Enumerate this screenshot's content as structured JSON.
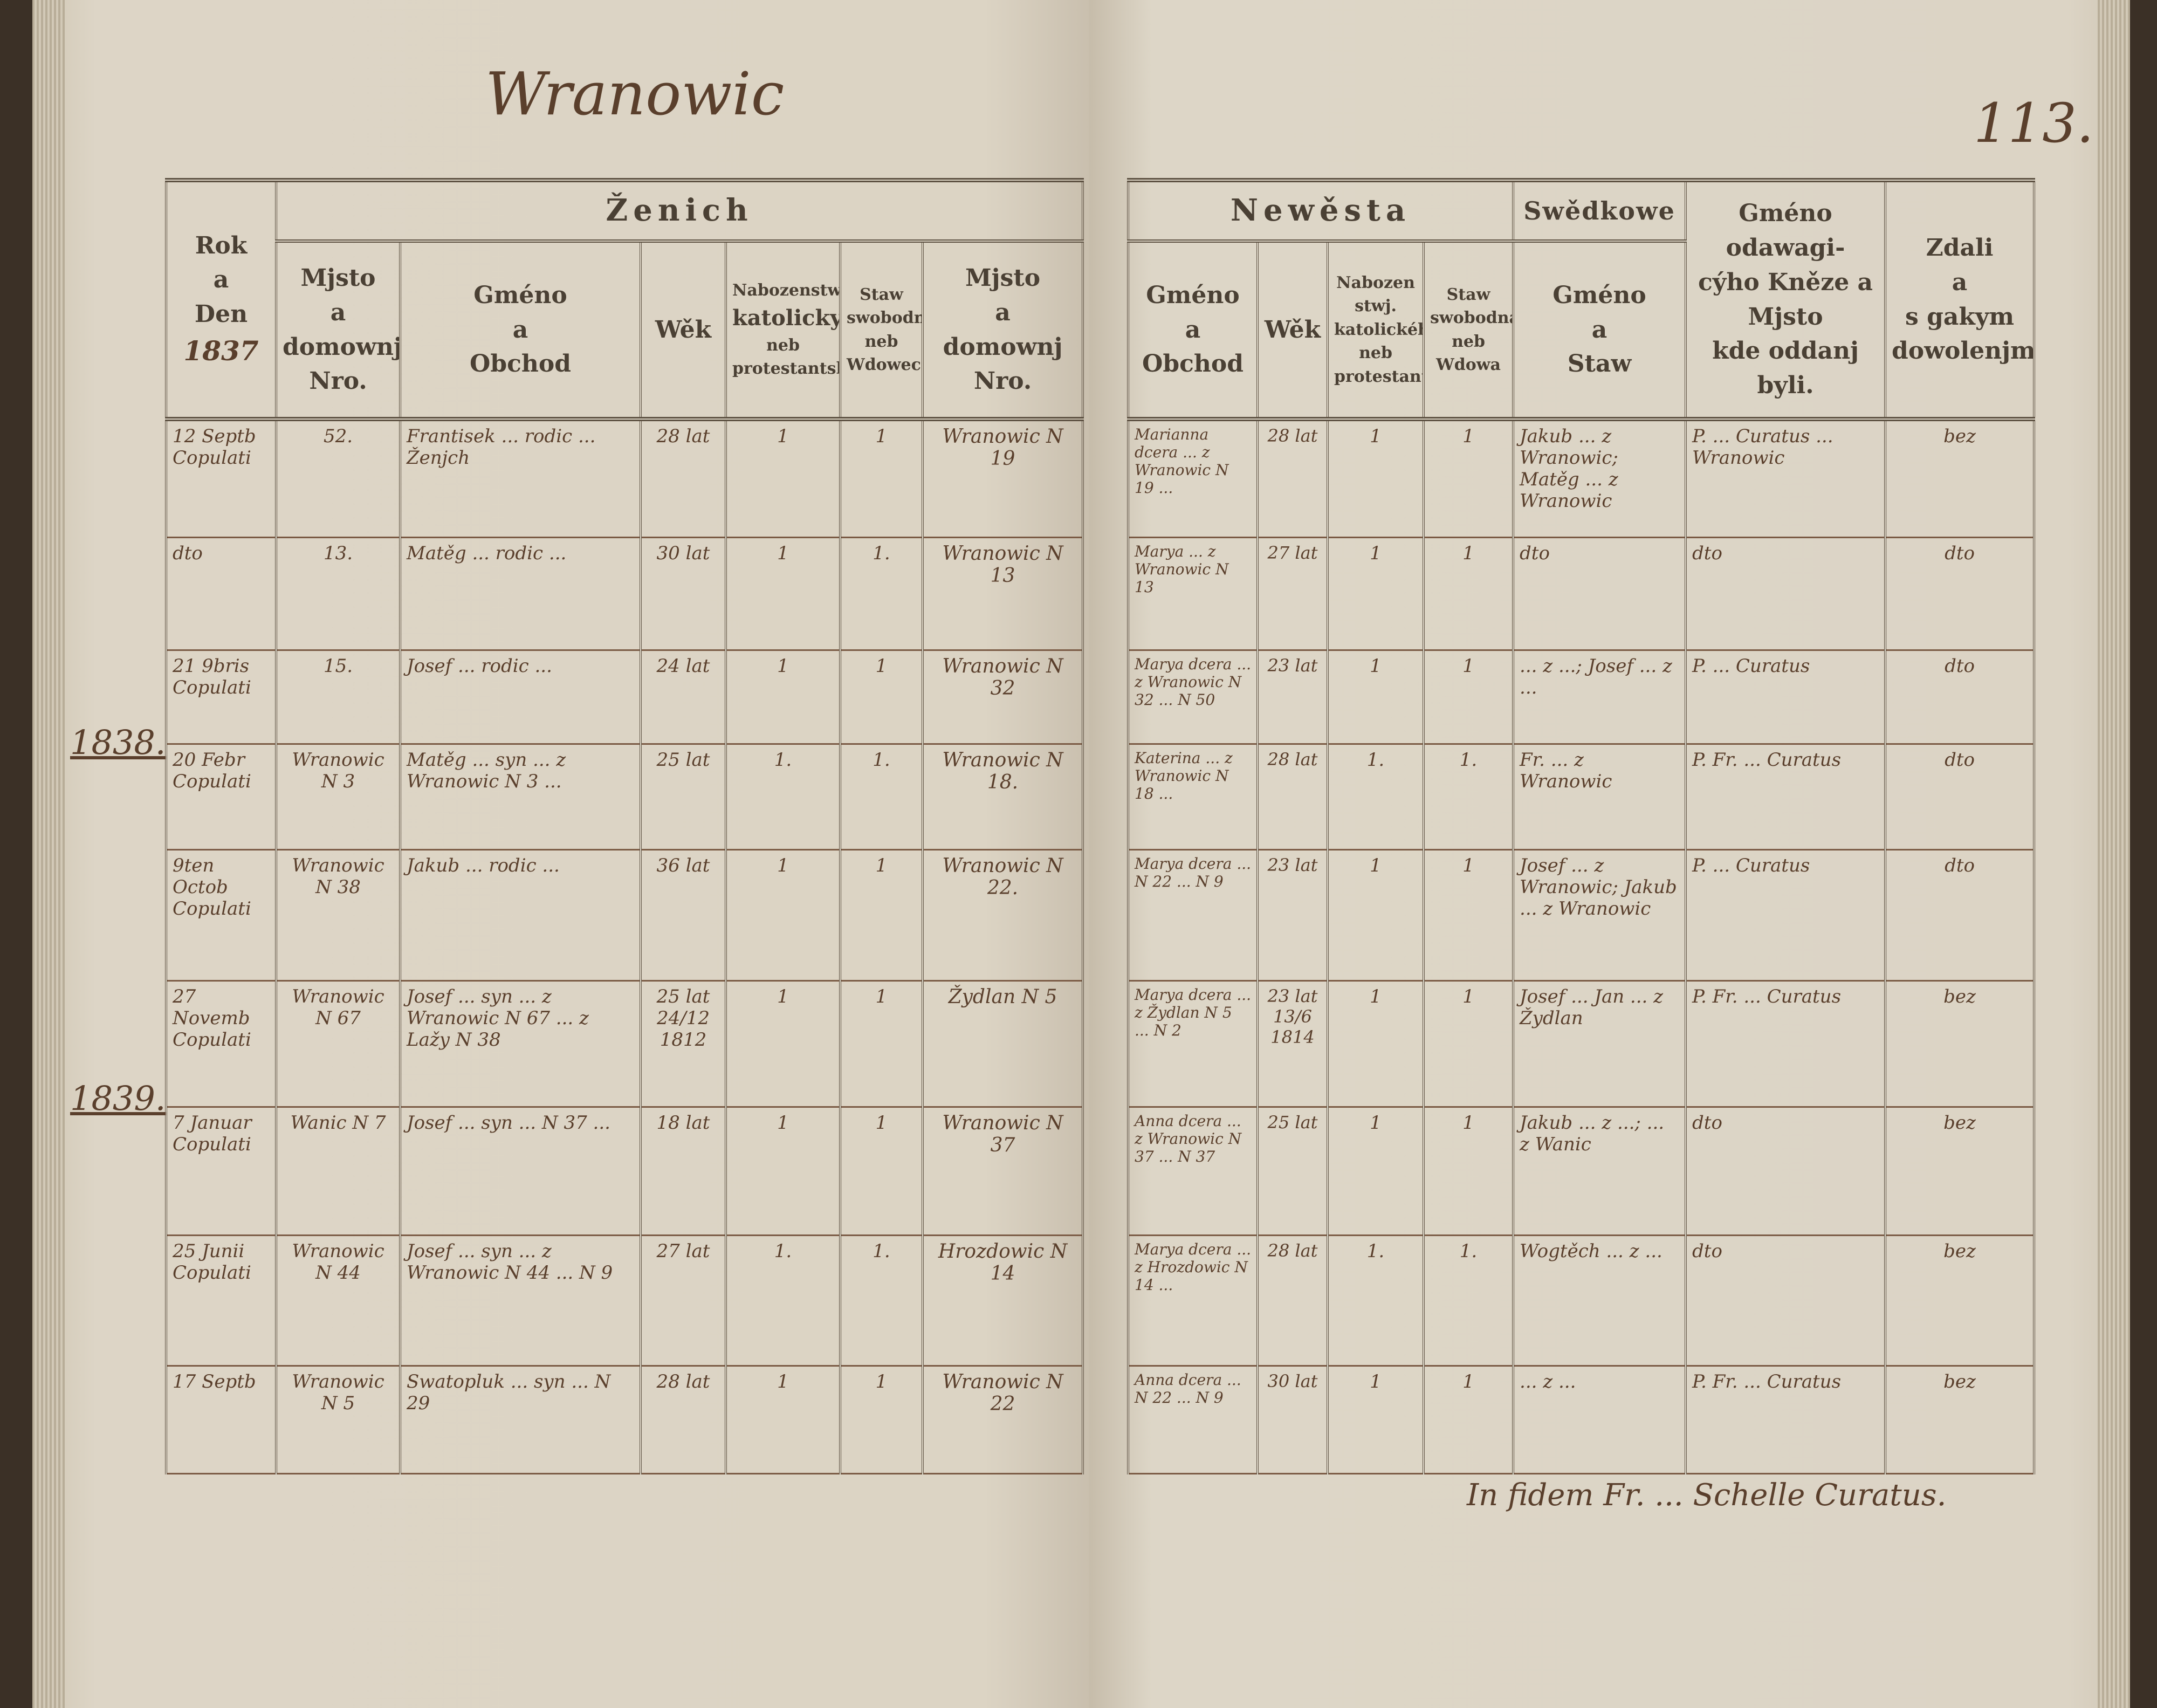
{
  "left_page": {
    "title": "Wranowic",
    "header": {
      "rok": [
        "Rok",
        "a",
        "Den"
      ],
      "zenich": "Ženich",
      "misto": [
        "Mjsto",
        "a",
        "domownj",
        "Nro."
      ],
      "gmeno": [
        "Gméno",
        "a",
        "Obchod"
      ],
      "wek": "Wěk",
      "nabozenstwi": [
        "Nabozenstwj",
        "katolicky",
        "neb",
        "protestantsky"
      ],
      "staw": [
        "Staw",
        "swobodny",
        "neb",
        "Wdowec"
      ],
      "misto2": [
        "Mjsto",
        "a",
        "domownj",
        "Nro."
      ]
    },
    "year_start": "1837",
    "year_labels": [
      "1838.",
      "1839."
    ],
    "rows": [
      {
        "date": "12 Septb Copulati",
        "house": "52.",
        "name": "Frantisek ... rodic ... Ženjch",
        "age": "28 lat",
        "kat": "1",
        "prot": "",
        "svob": "1",
        "vdov": "",
        "residence": "Wranowic N 19"
      },
      {
        "date": "dto",
        "house": "13.",
        "name": "Matěg ... rodic ...",
        "age": "30 lat",
        "kat": "1",
        "prot": "",
        "svob": "",
        "vdov": "1.",
        "residence": "Wranowic N 13"
      },
      {
        "date": "21 9bris Copulati",
        "house": "15.",
        "name": "Josef ... rodic ...",
        "age": "24 lat",
        "kat": "1",
        "prot": "",
        "svob": "",
        "vdov": "1",
        "residence": "Wranowic N 32"
      },
      {
        "date": "20 Febr Copulati",
        "house": "Wranowic N 3",
        "name": "Matěg ... syn ... z Wranowic N 3 ...",
        "age": "25 lat",
        "kat": "1.",
        "prot": "",
        "svob": "1.",
        "vdov": "",
        "residence": "Wranowic N 18."
      },
      {
        "date": "9ten Octob Copulati",
        "house": "Wranowic N 38",
        "name": "Jakub ... rodic ...",
        "age": "36 lat",
        "kat": "1",
        "prot": "",
        "svob": "",
        "vdov": "1",
        "residence": "Wranowic N 22."
      },
      {
        "date": "27 Novemb Copulati",
        "house": "Wranowic N 67",
        "name": "Josef ... syn ... z Wranowic N 67 ... z Lažy N 38",
        "age": "25 lat 24/12 1812",
        "kat": "1",
        "prot": "",
        "svob": "1",
        "vdov": "",
        "residence": "Žydlan N 5"
      },
      {
        "date": "7 Januar Copulati",
        "house": "Wanic N 7",
        "name": "Josef ... syn ... N 37 ...",
        "age": "18 lat",
        "kat": "1",
        "prot": "",
        "svob": "1",
        "vdov": "",
        "residence": "Wranowic N 37"
      },
      {
        "date": "25 Junii Copulati",
        "house": "Wranowic N 44",
        "name": "Josef ... syn ... z Wranowic N 44 ... N 9",
        "age": "27 lat",
        "kat": "1.",
        "prot": "",
        "svob": "1.",
        "vdov": "",
        "residence": "Hrozdowic N 14"
      },
      {
        "date": "17 Septb",
        "house": "Wranowic N 5",
        "name": "Swatopluk ... syn ... N 29",
        "age": "28 lat",
        "kat": "1",
        "prot": "",
        "svob": "1",
        "vdov": "",
        "residence": "Wranowic N 22"
      }
    ]
  },
  "right_page": {
    "page_number": "113.",
    "header": {
      "newesta": "Newěsta",
      "gmeno": [
        "Gméno",
        "a",
        "Obchod"
      ],
      "wek": "Wěk",
      "nabozenstwi": [
        "Nabozen",
        "stwj.",
        "katolického",
        "neb",
        "protestant."
      ],
      "staw": [
        "Staw",
        "swobodna",
        "neb",
        "Wdowa"
      ],
      "swedkowe": "Swědkowe",
      "swedkowe_sub": [
        "Gméno",
        "a",
        "Staw"
      ],
      "knez": [
        "Gméno odawagi-",
        "cýho Kněze a",
        "Mjsto",
        "kde oddanj byli."
      ],
      "zdali": [
        "Zdali",
        "a",
        "s gakym",
        "dowolenjm"
      ]
    },
    "rows": [
      {
        "name": "Marianna dcera ... z Wranowic N 19 ...",
        "age": "28 lat",
        "kat": "1",
        "prot": "",
        "svob": "1",
        "vdov": "",
        "witness": "Jakub ... z Wranowic; Matěg ... z Wranowic",
        "priest": "P. ... Curatus ... Wranowic",
        "permit": "bez"
      },
      {
        "name": "Marya ... z Wranowic N 13",
        "age": "27 lat",
        "kat": "1",
        "prot": "",
        "svob": "",
        "vdov": "1",
        "witness": "dto",
        "priest": "dto",
        "permit": "dto"
      },
      {
        "name": "Marya dcera ... z Wranowic N 32 ... N 50",
        "age": "23 lat",
        "kat": "1",
        "prot": "",
        "svob": "1",
        "vdov": "",
        "witness": "... z ...; Josef ... z ...",
        "priest": "P. ... Curatus",
        "permit": "dto"
      },
      {
        "name": "Katerina ... z Wranowic N 18 ...",
        "age": "28 lat",
        "kat": "1.",
        "prot": "",
        "svob": "1.",
        "vdov": "",
        "witness": "Fr. ... z Wranowic",
        "priest": "P. Fr. ... Curatus",
        "permit": "dto"
      },
      {
        "name": "Marya dcera ... N 22 ... N 9",
        "age": "23 lat",
        "kat": "1",
        "prot": "",
        "svob": "1",
        "vdov": "",
        "witness": "Josef ... z Wranowic; Jakub ... z Wranowic",
        "priest": "P. ... Curatus",
        "permit": "dto"
      },
      {
        "name": "Marya dcera ... z Žydlan N 5 ... N 2",
        "age": "23 lat 13/6 1814",
        "kat": "1",
        "prot": "",
        "svob": "1",
        "vdov": "",
        "witness": "Josef ... Jan ... z Žydlan",
        "priest": "P. Fr. ... Curatus",
        "permit": "bez"
      },
      {
        "name": "Anna dcera ... z Wranowic N 37 ... N 37",
        "age": "25 lat",
        "kat": "1",
        "prot": "",
        "svob": "1",
        "vdov": "",
        "witness": "Jakub ... z ...; ... z Wanic",
        "priest": "dto",
        "permit": "bez"
      },
      {
        "name": "Marya dcera ... z Hrozdowic N 14 ...",
        "age": "28 lat",
        "kat": "1.",
        "prot": "",
        "svob": "1.",
        "vdov": "",
        "witness": "Wogtěch ... z ...",
        "priest": "dto",
        "permit": "bez"
      },
      {
        "name": "Anna dcera ... N 22 ... N 9",
        "age": "30 lat",
        "kat": "1",
        "prot": "",
        "svob": "1",
        "vdov": "",
        "witness": "... z ...",
        "priest": "P. Fr. ... Curatus",
        "permit": "bez"
      }
    ],
    "signature": "In fidem Fr. ... Schelle Curatus."
  },
  "colors": {
    "paper": "#dcd4c4",
    "ink_print": "#4a4034",
    "ink_hand": "#5a3f2c"
  }
}
